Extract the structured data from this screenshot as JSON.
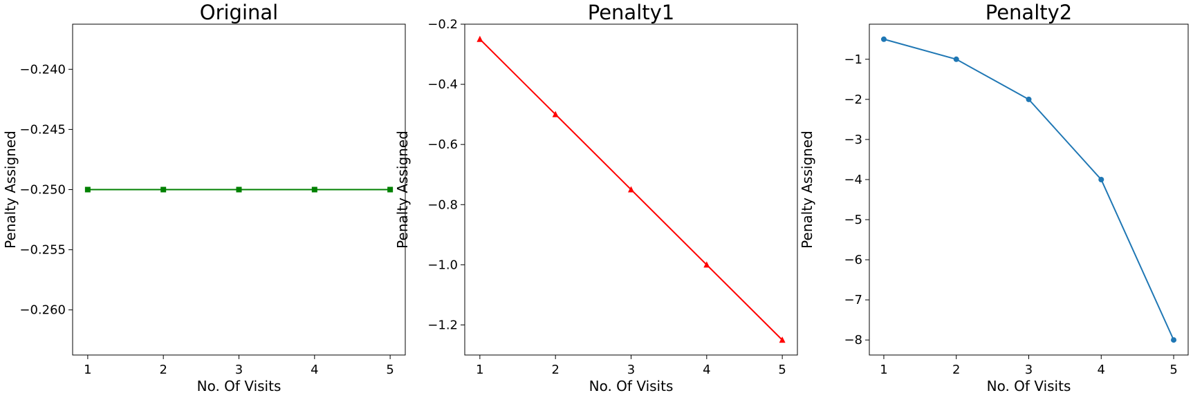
{
  "chart_data": [
    {
      "type": "line",
      "title": "Original",
      "xlabel": "No. Of Visits",
      "ylabel": "Penalty Assigned",
      "x": [
        1,
        2,
        3,
        4,
        5
      ],
      "xticks": [
        "1",
        "2",
        "3",
        "4",
        "5"
      ],
      "xlim": [
        0.8,
        5.2
      ],
      "ylim": [
        -0.26375,
        -0.23625
      ],
      "yticks": [
        -0.26,
        -0.255,
        -0.25,
        -0.245,
        -0.24
      ],
      "ytick_labels": [
        "−0.260",
        "−0.255",
        "−0.250",
        "−0.245",
        "−0.240"
      ],
      "grid": false,
      "series": [
        {
          "values": [
            -0.25,
            -0.25,
            -0.25,
            -0.25,
            -0.25
          ],
          "color": "#008000",
          "marker": "square"
        }
      ]
    },
    {
      "type": "line",
      "title": "Penalty1",
      "xlabel": "No. Of Visits",
      "ylabel": "Penalty Assigned",
      "x": [
        1,
        2,
        3,
        4,
        5
      ],
      "xticks": [
        "1",
        "2",
        "3",
        "4",
        "5"
      ],
      "xlim": [
        0.8,
        5.2
      ],
      "ylim": [
        -1.3,
        -0.2
      ],
      "yticks": [
        -1.2,
        -1.0,
        -0.8,
        -0.6,
        -0.4,
        -0.2
      ],
      "ytick_labels": [
        "−1.2",
        "−1.0",
        "−0.8",
        "−0.6",
        "−0.4",
        "−0.2"
      ],
      "grid": false,
      "series": [
        {
          "values": [
            -0.25,
            -0.5,
            -0.75,
            -1.0,
            -1.25
          ],
          "color": "#ff0000",
          "marker": "triangle"
        }
      ]
    },
    {
      "type": "line",
      "title": "Penalty2",
      "xlabel": "No. Of Visits",
      "ylabel": "Penalty Assigned",
      "x": [
        1,
        2,
        3,
        4,
        5
      ],
      "xticks": [
        "1",
        "2",
        "3",
        "4",
        "5"
      ],
      "xlim": [
        0.8,
        5.2
      ],
      "ylim": [
        -8.375,
        -0.125
      ],
      "yticks": [
        -8,
        -7,
        -6,
        -5,
        -4,
        -3,
        -2,
        -1
      ],
      "ytick_labels": [
        "−8",
        "−7",
        "−6",
        "−5",
        "−4",
        "−3",
        "−2",
        "−1"
      ],
      "grid": false,
      "series": [
        {
          "values": [
            -0.5,
            -1.0,
            -2.0,
            -4.0,
            -8.0
          ],
          "color": "#1f77b4",
          "marker": "circle"
        }
      ]
    }
  ]
}
